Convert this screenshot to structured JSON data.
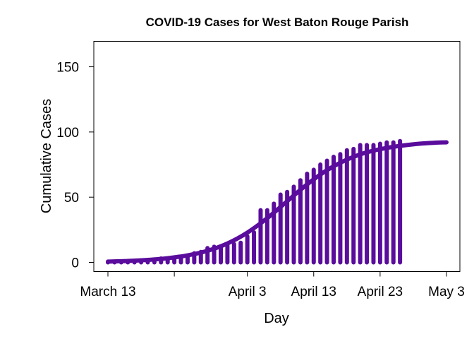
{
  "chart_data": {
    "type": "line",
    "title": "COVID-19 Cases for West Baton Rouge Parish",
    "xlabel": "Day",
    "ylabel": "Cumulative Cases",
    "xlim": [
      "2020-03-13",
      "2020-05-03"
    ],
    "ylim": [
      0,
      170
    ],
    "x_ticks": [
      "2020-03-13",
      "2020-03-23",
      "2020-04-03",
      "2020-04-13",
      "2020-04-23",
      "2020-05-03"
    ],
    "x_tick_labels": [
      "March 13",
      "",
      "April 3",
      "April 13",
      "April 23",
      "May 3"
    ],
    "y_ticks": [
      0,
      50,
      100,
      150
    ],
    "y_tick_labels": [
      "0",
      "50",
      "100",
      "150"
    ],
    "grid": false,
    "color": "#5a0c9c",
    "series": [
      {
        "type": "bars",
        "x": [
          "2020-03-13",
          "2020-03-14",
          "2020-03-15",
          "2020-03-16",
          "2020-03-17",
          "2020-03-18",
          "2020-03-19",
          "2020-03-20",
          "2020-03-21",
          "2020-03-22",
          "2020-03-23",
          "2020-03-24",
          "2020-03-25",
          "2020-03-26",
          "2020-03-27",
          "2020-03-28",
          "2020-03-29",
          "2020-03-30",
          "2020-03-31",
          "2020-04-01",
          "2020-04-02",
          "2020-04-03",
          "2020-04-04",
          "2020-04-05",
          "2020-04-06",
          "2020-04-07",
          "2020-04-08",
          "2020-04-09",
          "2020-04-10",
          "2020-04-11",
          "2020-04-12",
          "2020-04-13",
          "2020-04-14",
          "2020-04-15",
          "2020-04-16",
          "2020-04-17",
          "2020-04-18",
          "2020-04-19",
          "2020-04-20",
          "2020-04-21",
          "2020-04-22",
          "2020-04-23",
          "2020-04-24",
          "2020-04-25",
          "2020-04-26"
        ],
        "values": [
          0,
          0,
          0,
          0,
          0,
          1,
          1,
          2,
          3,
          3,
          3,
          4,
          5,
          7,
          8,
          11,
          12,
          12,
          13,
          14,
          15,
          20,
          23,
          40,
          40,
          45,
          52,
          54,
          58,
          63,
          68,
          71,
          75,
          78,
          81,
          83,
          86,
          87,
          90,
          90,
          90,
          91,
          92,
          92,
          93
        ]
      },
      {
        "type": "fit",
        "x": [
          "2020-03-13",
          "2020-03-16",
          "2020-03-19",
          "2020-03-22",
          "2020-03-25",
          "2020-03-28",
          "2020-03-31",
          "2020-04-03",
          "2020-04-06",
          "2020-04-09",
          "2020-04-12",
          "2020-04-15",
          "2020-04-18",
          "2020-04-21",
          "2020-04-24",
          "2020-04-27",
          "2020-04-30",
          "2020-05-03"
        ],
        "values": [
          0.6,
          1.1,
          1.9,
          3.2,
          5.4,
          8.9,
          14.5,
          22.8,
          33.9,
          46.9,
          59.8,
          70.7,
          78.8,
          84.4,
          87.8,
          90.0,
          91.4,
          92.1
        ]
      }
    ]
  }
}
